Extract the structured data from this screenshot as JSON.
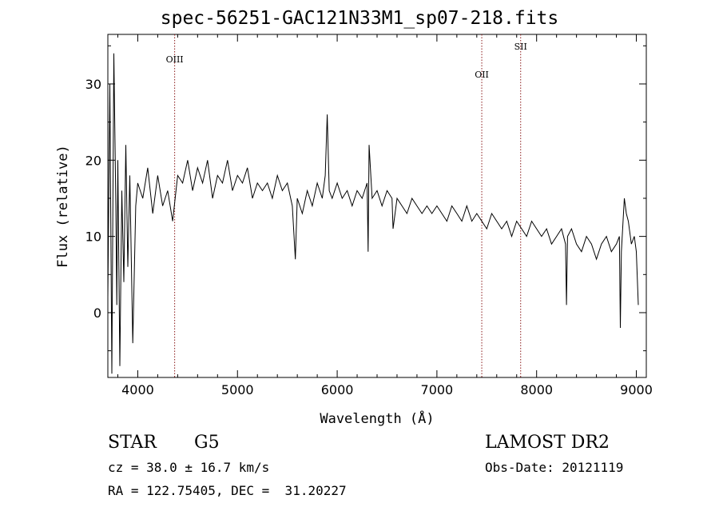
{
  "chart_data": {
    "type": "line",
    "title": "spec-56251-GAC121N33M1_sp07-218.fits",
    "xlabel": "Wavelength (Å)",
    "ylabel": "Flux (relative)",
    "xlim": [
      3700,
      9100
    ],
    "ylim": [
      -8.5,
      36.5
    ],
    "xticks": [
      4000,
      5000,
      6000,
      7000,
      8000,
      9000
    ],
    "yticks": [
      0,
      10,
      20,
      30
    ],
    "grid": false,
    "line_color": "#000000",
    "marker_color": "#8b1a1a",
    "lines": [
      {
        "label": "OIII",
        "x": 4370
      },
      {
        "label": "OII",
        "x": 7450
      },
      {
        "label": "SII",
        "x": 7840
      }
    ],
    "series": [
      {
        "x": [
          3700,
          3720,
          3740,
          3760,
          3780,
          3790,
          3800,
          3820,
          3840,
          3860,
          3880,
          3900,
          3920,
          3950,
          3980,
          4000,
          4050,
          4100,
          4150,
          4200,
          4250,
          4300,
          4350,
          4400,
          4450,
          4500,
          4550,
          4600,
          4650,
          4700,
          4750,
          4800,
          4850,
          4900,
          4950,
          5000,
          5050,
          5100,
          5150,
          5200,
          5250,
          5300,
          5350,
          5400,
          5450,
          5500,
          5550,
          5580,
          5600,
          5650,
          5700,
          5750,
          5800,
          5850,
          5880,
          5900,
          5920,
          5950,
          6000,
          6050,
          6100,
          6150,
          6200,
          6250,
          6300,
          6310,
          6320,
          6350,
          6400,
          6450,
          6500,
          6550,
          6560,
          6580,
          6600,
          6650,
          6700,
          6750,
          6800,
          6850,
          6900,
          6950,
          7000,
          7050,
          7100,
          7150,
          7200,
          7250,
          7300,
          7350,
          7400,
          7450,
          7500,
          7550,
          7600,
          7650,
          7700,
          7750,
          7800,
          7850,
          7900,
          7950,
          8000,
          8050,
          8100,
          8150,
          8200,
          8250,
          8290,
          8300,
          8310,
          8350,
          8400,
          8450,
          8500,
          8550,
          8600,
          8650,
          8700,
          8750,
          8800,
          8830,
          8840,
          8850,
          8880,
          8900,
          8920,
          8950,
          8980,
          9000,
          9020
        ],
        "y": [
          2,
          30,
          -8,
          34,
          14,
          1,
          20,
          -7,
          16,
          4,
          22,
          6,
          18,
          -4,
          14,
          17,
          15,
          19,
          13,
          18,
          14,
          16,
          12,
          18,
          17,
          20,
          16,
          19,
          17,
          20,
          15,
          18,
          17,
          20,
          16,
          18,
          17,
          19,
          15,
          17,
          16,
          17,
          15,
          18,
          16,
          17,
          14,
          7,
          15,
          13,
          16,
          14,
          17,
          15,
          18,
          26,
          16,
          15,
          17,
          15,
          16,
          14,
          16,
          15,
          17,
          8,
          22,
          15,
          16,
          14,
          16,
          15,
          11,
          13,
          15,
          14,
          13,
          15,
          14,
          13,
          14,
          13,
          14,
          13,
          12,
          14,
          13,
          12,
          14,
          12,
          13,
          12,
          11,
          13,
          12,
          11,
          12,
          10,
          12,
          11,
          10,
          12,
          11,
          10,
          11,
          9,
          10,
          11,
          9,
          1,
          10,
          11,
          9,
          8,
          10,
          9,
          7,
          9,
          10,
          8,
          9,
          10,
          -2,
          8,
          15,
          13,
          12,
          9,
          10,
          8,
          1
        ]
      }
    ]
  },
  "labels": {
    "object_class": "STAR",
    "subclass": "G5",
    "survey": "LAMOST DR2",
    "cz": "cz = 38.0 ± 16.7 km/s",
    "obs_date": "Obs-Date: 20121119",
    "coords": "RA = 122.75405, DEC =  31.20227"
  }
}
